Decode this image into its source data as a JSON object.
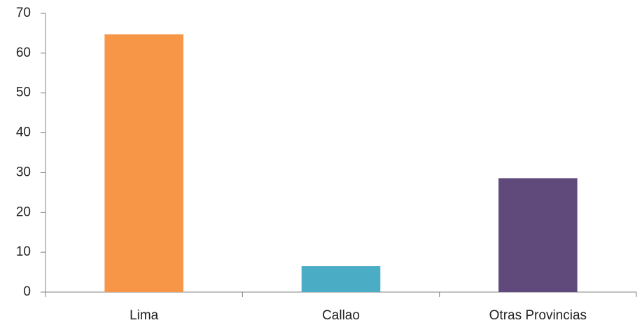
{
  "chart_data": {
    "type": "bar",
    "categories": [
      "Lima",
      "Callao",
      "Otras Provincias"
    ],
    "values": [
      64.7,
      6.5,
      28.6
    ],
    "colors": [
      "#F79646",
      "#4BACC6",
      "#604A7B"
    ],
    "ylim": [
      0,
      70
    ],
    "yticks": [
      0,
      10,
      20,
      30,
      40,
      50,
      60,
      70
    ],
    "ytick_labels": [
      "0",
      "10",
      "20",
      "30",
      "40",
      "50",
      "60",
      "70"
    ],
    "grid": false,
    "legend": "none"
  }
}
